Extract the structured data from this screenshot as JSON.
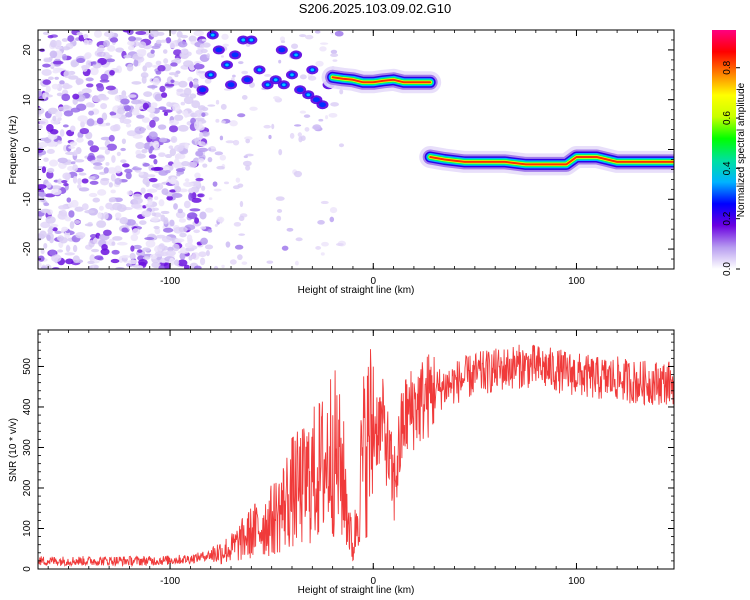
{
  "figure_title": "S206.2025.103.09.02.G10",
  "chart_data": [
    {
      "type": "heatmap",
      "title": "",
      "xlabel": "Height of straight line (km)",
      "ylabel": "Frequency (Hz)",
      "xlim": [
        -165,
        148
      ],
      "ylim": [
        -24,
        24
      ],
      "xticks": [
        -100,
        0,
        100
      ],
      "yticks": [
        -20,
        -10,
        0,
        10,
        20
      ],
      "colorbar": {
        "label": "Normalized spectral amplitude",
        "range": [
          0,
          0.95
        ],
        "ticks": [
          "0.0",
          "0.2",
          "0.4",
          "0.6",
          "0.8"
        ],
        "colors": [
          "#ffffff",
          "#b79cf0",
          "#6a00e0",
          "#0000ff",
          "#00b4ff",
          "#00e0a0",
          "#00ff00",
          "#c8ff00",
          "#ffff00",
          "#ff8000",
          "#ff0000",
          "#ff0080"
        ]
      },
      "ridges": [
        {
          "x": [
            -20,
            -15,
            -10,
            -5,
            0,
            5,
            10,
            15,
            20,
            25,
            28
          ],
          "freq": [
            14.5,
            14.2,
            14.0,
            13.5,
            13.5,
            13.8,
            14.0,
            13.5,
            13.5,
            13.5,
            13.5
          ]
        },
        {
          "x": [
            28,
            35,
            45,
            55,
            65,
            75,
            85,
            95,
            100,
            105,
            110,
            120,
            130,
            140,
            148
          ],
          "freq": [
            -1.5,
            -2.0,
            -2.5,
            -2.5,
            -2.5,
            -3.0,
            -3.0,
            -3.0,
            -1.5,
            -1.5,
            -1.5,
            -2.5,
            -2.5,
            -2.5,
            -2.5
          ]
        }
      ]
    },
    {
      "type": "line",
      "title": "",
      "xlabel": "Height of straight line (km)",
      "ylabel": "SNR (10 * v/v)",
      "xlim": [
        -165,
        148
      ],
      "ylim": [
        0,
        590
      ],
      "xticks": [
        -100,
        0,
        100
      ],
      "yticks": [
        0,
        100,
        200,
        300,
        400,
        500
      ],
      "line_color": "#f03a3a",
      "series": [
        {
          "x": [
            -165,
            -150,
            -140,
            -130,
            -120,
            -110,
            -100,
            -90,
            -80,
            -70,
            -60,
            -50,
            -45,
            -40,
            -35,
            -30,
            -25,
            -20,
            -15,
            -10,
            -5,
            0,
            5,
            10,
            15,
            20,
            25,
            30,
            40,
            50,
            60,
            70,
            80,
            90,
            100,
            110,
            120,
            130,
            140,
            148
          ],
          "y": [
            20,
            20,
            20,
            20,
            20,
            20,
            22,
            25,
            35,
            50,
            90,
            120,
            150,
            190,
            200,
            230,
            250,
            300,
            230,
            40,
            280,
            350,
            360,
            200,
            370,
            400,
            420,
            440,
            460,
            480,
            490,
            500,
            500,
            490,
            480,
            470,
            470,
            460,
            460,
            460
          ]
        }
      ]
    }
  ]
}
